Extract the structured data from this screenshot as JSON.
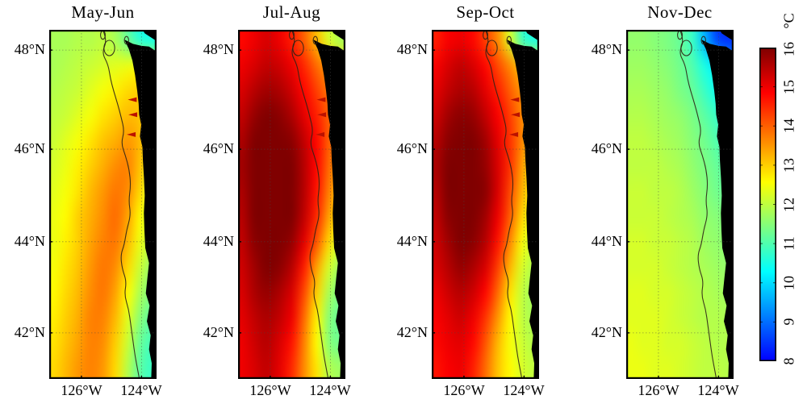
{
  "chart_data": {
    "type": "heatmap",
    "description": "Bi-monthly sea surface temperature maps off the Pacific Northwest coast with shared jet colorbar",
    "units": "°C",
    "lat_tick_labels": [
      "48°N",
      "46°N",
      "44°N",
      "42°N"
    ],
    "lon_tick_labels": [
      "126°W",
      "124°W"
    ],
    "lat_ticks": [
      48,
      46,
      44,
      42
    ],
    "lon_ticks": [
      -126,
      -124
    ],
    "lat_range": [
      41.0,
      48.5
    ],
    "lon_range": [
      -126.8,
      -123.6
    ],
    "grid_fractions": {
      "lat": [
        0.058,
        0.342,
        0.607,
        0.868
      ],
      "lon": [
        0.3,
        0.86
      ]
    },
    "colorbar": {
      "unit_label": "°C",
      "tick_labels": [
        "16",
        "15",
        "14",
        "13",
        "12",
        "11",
        "10",
        "9",
        "8"
      ],
      "range": [
        8,
        16
      ],
      "colormap": "jet",
      "top_color": "#7f0000",
      "bottom_color": "#0000ff"
    },
    "land_color": "#000000",
    "panels": [
      {
        "title": "May-Jun",
        "plumes": true,
        "grid": [
          [
            11.8,
            11.8,
            11.9,
            11.9,
            12.0,
            11.8,
            11.2,
            10.6,
            10.5
          ],
          [
            11.8,
            11.9,
            12.0,
            12.1,
            12.2,
            12.3,
            12.4,
            12.5,
            12.3
          ],
          [
            11.9,
            12.0,
            12.1,
            12.3,
            12.5,
            12.7,
            12.9,
            13.0,
            12.7
          ],
          [
            12.0,
            12.1,
            12.3,
            12.5,
            12.8,
            13.0,
            13.2,
            13.1,
            12.7
          ],
          [
            12.1,
            12.3,
            12.5,
            12.8,
            13.1,
            13.3,
            13.5,
            13.2,
            12.5
          ],
          [
            12.2,
            12.4,
            12.7,
            13.0,
            13.3,
            13.6,
            13.7,
            13.1,
            12.3
          ],
          [
            12.3,
            12.5,
            12.8,
            13.2,
            13.5,
            13.8,
            13.6,
            12.9,
            12.1
          ],
          [
            12.4,
            12.6,
            13.0,
            13.3,
            13.6,
            13.9,
            13.4,
            12.6,
            12.0
          ],
          [
            12.4,
            12.7,
            13.0,
            13.4,
            13.7,
            13.8,
            13.2,
            12.4,
            11.9
          ],
          [
            12.5,
            12.8,
            13.1,
            13.5,
            13.8,
            13.6,
            12.9,
            12.1,
            11.6
          ],
          [
            12.6,
            12.9,
            13.2,
            13.6,
            13.8,
            13.4,
            12.6,
            11.8,
            11.4
          ],
          [
            12.7,
            13.0,
            13.3,
            13.7,
            13.7,
            13.2,
            12.3,
            11.5,
            11.1
          ],
          [
            12.8,
            13.1,
            13.4,
            13.7,
            13.6,
            13.0,
            12.1,
            11.2,
            10.9
          ],
          [
            12.9,
            13.2,
            13.5,
            13.7,
            13.5,
            12.9,
            11.9,
            11.1,
            10.8
          ]
        ]
      },
      {
        "title": "Jul-Aug",
        "plumes": true,
        "grid": [
          [
            14.8,
            15.0,
            15.2,
            15.0,
            14.6,
            14.0,
            13.2,
            12.2,
            11.8
          ],
          [
            15.0,
            15.2,
            15.4,
            15.3,
            15.0,
            14.5,
            13.9,
            13.4,
            13.0
          ],
          [
            15.2,
            15.5,
            15.7,
            15.6,
            15.3,
            14.8,
            14.3,
            13.8,
            13.4
          ],
          [
            15.4,
            15.8,
            16.0,
            15.9,
            15.6,
            15.1,
            14.6,
            14.0,
            13.5
          ],
          [
            15.6,
            16.0,
            16.3,
            16.2,
            15.9,
            15.4,
            14.8,
            14.0,
            13.4
          ],
          [
            15.7,
            16.2,
            16.4,
            16.3,
            16.0,
            15.5,
            14.8,
            13.9,
            13.2
          ],
          [
            15.6,
            16.1,
            16.4,
            16.4,
            16.1,
            15.5,
            14.7,
            13.7,
            13.0
          ],
          [
            15.5,
            16.0,
            16.3,
            16.3,
            16.0,
            15.4,
            14.5,
            13.4,
            12.6
          ],
          [
            15.4,
            15.9,
            16.2,
            16.1,
            15.8,
            15.1,
            14.1,
            12.9,
            12.1
          ],
          [
            15.3,
            15.7,
            16.0,
            15.9,
            15.5,
            14.6,
            13.4,
            12.2,
            11.6
          ],
          [
            15.2,
            15.6,
            15.8,
            15.6,
            15.2,
            14.2,
            13.0,
            11.8,
            11.3
          ],
          [
            15.1,
            15.4,
            15.6,
            15.4,
            15.0,
            13.9,
            12.7,
            11.5,
            11.2
          ],
          [
            15.0,
            15.3,
            15.5,
            15.2,
            14.7,
            13.7,
            12.6,
            11.5,
            11.3
          ],
          [
            15.0,
            15.2,
            15.4,
            15.1,
            14.5,
            13.6,
            12.8,
            11.9,
            11.7
          ]
        ]
      },
      {
        "title": "Sep-Oct",
        "plumes": true,
        "grid": [
          [
            14.6,
            14.9,
            15.0,
            14.8,
            14.3,
            13.6,
            12.2,
            10.8,
            10.5
          ],
          [
            14.9,
            15.2,
            15.4,
            15.2,
            14.8,
            14.2,
            13.6,
            13.0,
            12.6
          ],
          [
            15.1,
            15.4,
            15.6,
            15.5,
            15.1,
            14.6,
            14.0,
            13.5,
            13.0
          ],
          [
            15.3,
            15.7,
            15.9,
            15.8,
            15.4,
            14.9,
            14.3,
            13.6,
            13.1
          ],
          [
            15.5,
            15.9,
            16.2,
            16.1,
            15.7,
            15.1,
            14.4,
            13.6,
            13.0
          ],
          [
            15.6,
            16.0,
            16.3,
            16.2,
            15.8,
            15.2,
            14.4,
            13.4,
            12.8
          ],
          [
            15.5,
            16.0,
            16.3,
            16.2,
            15.9,
            15.2,
            14.2,
            13.2,
            12.6
          ],
          [
            15.4,
            15.9,
            16.2,
            16.1,
            15.7,
            15.0,
            14.0,
            12.9,
            12.3
          ],
          [
            15.3,
            15.7,
            16.0,
            15.9,
            15.5,
            14.7,
            13.6,
            12.5,
            12.0
          ],
          [
            15.2,
            15.5,
            15.8,
            15.6,
            15.2,
            14.3,
            13.2,
            12.2,
            11.8
          ],
          [
            15.0,
            15.3,
            15.5,
            15.3,
            14.8,
            13.9,
            12.8,
            12.0,
            11.7
          ],
          [
            14.9,
            15.1,
            15.3,
            15.0,
            14.4,
            13.5,
            12.6,
            12.0,
            11.8
          ],
          [
            14.8,
            15.0,
            15.1,
            14.8,
            14.1,
            13.2,
            12.5,
            12.1,
            11.9
          ],
          [
            14.7,
            14.9,
            15.0,
            14.6,
            13.9,
            13.1,
            12.6,
            12.2,
            12.0
          ]
        ]
      },
      {
        "title": "Nov-Dec",
        "plumes": false,
        "grid": [
          [
            11.6,
            11.6,
            11.5,
            11.4,
            11.2,
            10.8,
            9.6,
            8.6,
            8.4
          ],
          [
            11.7,
            11.7,
            11.6,
            11.5,
            11.3,
            11.0,
            10.5,
            10.0,
            9.6
          ],
          [
            11.8,
            11.8,
            11.7,
            11.6,
            11.4,
            11.2,
            10.8,
            10.4,
            10.2
          ],
          [
            11.9,
            11.9,
            11.8,
            11.7,
            11.6,
            11.4,
            11.1,
            10.8,
            10.5
          ],
          [
            12.0,
            12.0,
            11.9,
            11.8,
            11.7,
            11.5,
            11.3,
            11.0,
            10.8
          ],
          [
            12.0,
            12.0,
            12.0,
            11.9,
            11.8,
            11.6,
            11.4,
            11.2,
            11.0
          ],
          [
            12.1,
            12.1,
            12.0,
            12.0,
            11.9,
            11.7,
            11.5,
            11.3,
            11.2
          ],
          [
            12.1,
            12.1,
            12.1,
            12.0,
            11.9,
            11.8,
            11.6,
            11.5,
            11.4
          ],
          [
            12.2,
            12.2,
            12.1,
            12.1,
            12.0,
            11.9,
            11.7,
            11.6,
            11.5
          ],
          [
            12.2,
            12.2,
            12.2,
            12.1,
            12.0,
            11.9,
            11.8,
            11.7,
            11.6
          ],
          [
            12.3,
            12.3,
            12.2,
            12.2,
            12.1,
            12.0,
            11.9,
            11.8,
            11.7
          ],
          [
            12.3,
            12.3,
            12.3,
            12.2,
            12.1,
            12.0,
            11.9,
            11.9,
            11.8
          ],
          [
            12.4,
            12.3,
            12.3,
            12.2,
            12.2,
            12.1,
            12.0,
            11.9,
            11.9
          ],
          [
            12.4,
            12.4,
            12.3,
            12.3,
            12.2,
            12.1,
            12.0,
            12.0,
            11.9
          ]
        ]
      }
    ],
    "geo": {
      "corner_island": [
        [
          0.87,
          0.0
        ],
        [
          1.0,
          0.0
        ],
        [
          1.0,
          0.032
        ],
        [
          0.89,
          0.01
        ]
      ],
      "land": [
        [
          0.7,
          0.028
        ],
        [
          0.78,
          0.04
        ],
        [
          0.86,
          0.046
        ],
        [
          0.93,
          0.048
        ],
        [
          1.0,
          0.062
        ],
        [
          1.0,
          1.0
        ],
        [
          0.95,
          1.0
        ],
        [
          0.955,
          0.955
        ],
        [
          0.93,
          0.915
        ],
        [
          0.945,
          0.875
        ],
        [
          0.91,
          0.835
        ],
        [
          0.935,
          0.79
        ],
        [
          0.9,
          0.755
        ],
        [
          0.915,
          0.71
        ],
        [
          0.93,
          0.668
        ],
        [
          0.895,
          0.625
        ],
        [
          0.887,
          0.575
        ],
        [
          0.882,
          0.525
        ],
        [
          0.89,
          0.475
        ],
        [
          0.883,
          0.425
        ],
        [
          0.873,
          0.375
        ],
        [
          0.868,
          0.335
        ],
        [
          0.845,
          0.305
        ],
        [
          0.857,
          0.272
        ],
        [
          0.838,
          0.243
        ],
        [
          0.833,
          0.212
        ],
        [
          0.82,
          0.175
        ],
        [
          0.8,
          0.13
        ],
        [
          0.775,
          0.088
        ],
        [
          0.742,
          0.055
        ],
        [
          0.7,
          0.028
        ]
      ],
      "shelf_contour": [
        [
          0.5,
          0.0
        ],
        [
          0.54,
          0.03
        ],
        [
          0.49,
          0.065
        ],
        [
          0.55,
          0.1
        ],
        [
          0.57,
          0.14
        ],
        [
          0.6,
          0.175
        ],
        [
          0.64,
          0.215
        ],
        [
          0.67,
          0.25
        ],
        [
          0.7,
          0.29
        ],
        [
          0.67,
          0.325
        ],
        [
          0.71,
          0.36
        ],
        [
          0.745,
          0.4
        ],
        [
          0.76,
          0.445
        ],
        [
          0.74,
          0.49
        ],
        [
          0.76,
          0.53
        ],
        [
          0.72,
          0.575
        ],
        [
          0.7,
          0.615
        ],
        [
          0.665,
          0.645
        ],
        [
          0.68,
          0.685
        ],
        [
          0.72,
          0.72
        ],
        [
          0.7,
          0.76
        ],
        [
          0.74,
          0.8
        ],
        [
          0.76,
          0.845
        ],
        [
          0.78,
          0.89
        ],
        [
          0.8,
          0.935
        ],
        [
          0.825,
          0.975
        ],
        [
          0.84,
          1.0
        ]
      ],
      "contour_loops": [
        {
          "cx": 0.56,
          "cy": 0.052,
          "rx": 0.05,
          "ry": 0.022
        },
        {
          "cx": 0.5,
          "cy": 0.015,
          "rx": 0.022,
          "ry": 0.012
        },
        {
          "cx": 0.72,
          "cy": 0.03,
          "rx": 0.02,
          "ry": 0.011
        }
      ],
      "plume_points": [
        [
          0.8,
          0.2
        ],
        [
          0.805,
          0.243
        ],
        [
          0.79,
          0.3
        ]
      ],
      "plume_color": "#bb1100"
    }
  }
}
